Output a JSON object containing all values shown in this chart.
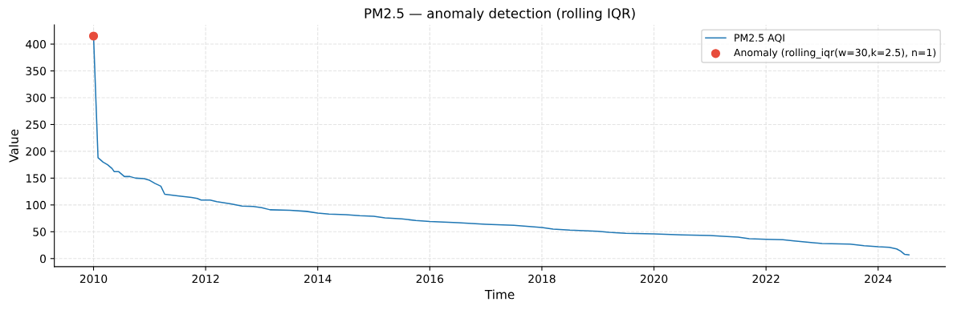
{
  "chart_data": {
    "type": "line",
    "title": "PM2.5 — anomaly detection (rolling IQR)",
    "xlabel": "Time",
    "ylabel": "Value",
    "xlim": [
      2009.3,
      2025.2
    ],
    "xticks": [
      2010,
      2012,
      2014,
      2016,
      2018,
      2020,
      2022,
      2024
    ],
    "ylim": [
      -15,
      436
    ],
    "yticks": [
      0,
      50,
      100,
      150,
      200,
      250,
      300,
      350,
      400
    ],
    "grid": true,
    "legend": "top right",
    "series": [
      {
        "name": "PM2.5 AQI",
        "color": "#1f77b4",
        "marker": "none",
        "x": [
          2010.0,
          2010.08,
          2010.17,
          2010.25,
          2010.33,
          2010.37,
          2010.45,
          2010.55,
          2010.65,
          2010.75,
          2010.9,
          2011.0,
          2011.1,
          2011.2,
          2011.27,
          2011.5,
          2011.75,
          2011.85,
          2011.92,
          2012.08,
          2012.2,
          2012.45,
          2012.65,
          2012.85,
          2013.0,
          2013.15,
          2013.5,
          2013.8,
          2014.0,
          2014.2,
          2014.5,
          2014.75,
          2015.0,
          2015.2,
          2015.5,
          2015.75,
          2016.0,
          2016.5,
          2017.0,
          2017.5,
          2018.0,
          2018.2,
          2018.5,
          2019.0,
          2019.2,
          2019.5,
          2020.0,
          2020.5,
          2021.0,
          2021.3,
          2021.5,
          2021.7,
          2022.0,
          2022.3,
          2022.5,
          2022.8,
          2023.0,
          2023.5,
          2023.75,
          2024.0,
          2024.2,
          2024.33,
          2024.4,
          2024.47,
          2024.55
        ],
        "values": [
          415,
          188,
          180,
          175,
          168,
          162,
          162,
          153,
          153,
          150,
          149,
          146,
          140,
          135,
          120,
          117,
          114,
          112,
          109,
          109,
          106,
          102,
          98,
          97,
          95,
          91,
          90,
          88,
          85,
          83,
          82,
          80,
          79,
          76,
          74,
          71,
          69,
          67,
          64,
          62,
          58,
          55,
          53,
          51,
          49,
          47,
          46,
          44,
          43,
          41,
          40,
          37,
          36,
          35,
          33,
          30,
          28,
          27,
          24,
          22,
          21,
          18,
          14,
          8,
          7
        ]
      },
      {
        "name": "Anomaly (rolling_iqr(w=30,k=2.5), n=1)",
        "type": "scatter",
        "color": "#e74c3c",
        "marker": "circle",
        "x": [
          2010.0
        ],
        "values": [
          415
        ]
      }
    ]
  }
}
